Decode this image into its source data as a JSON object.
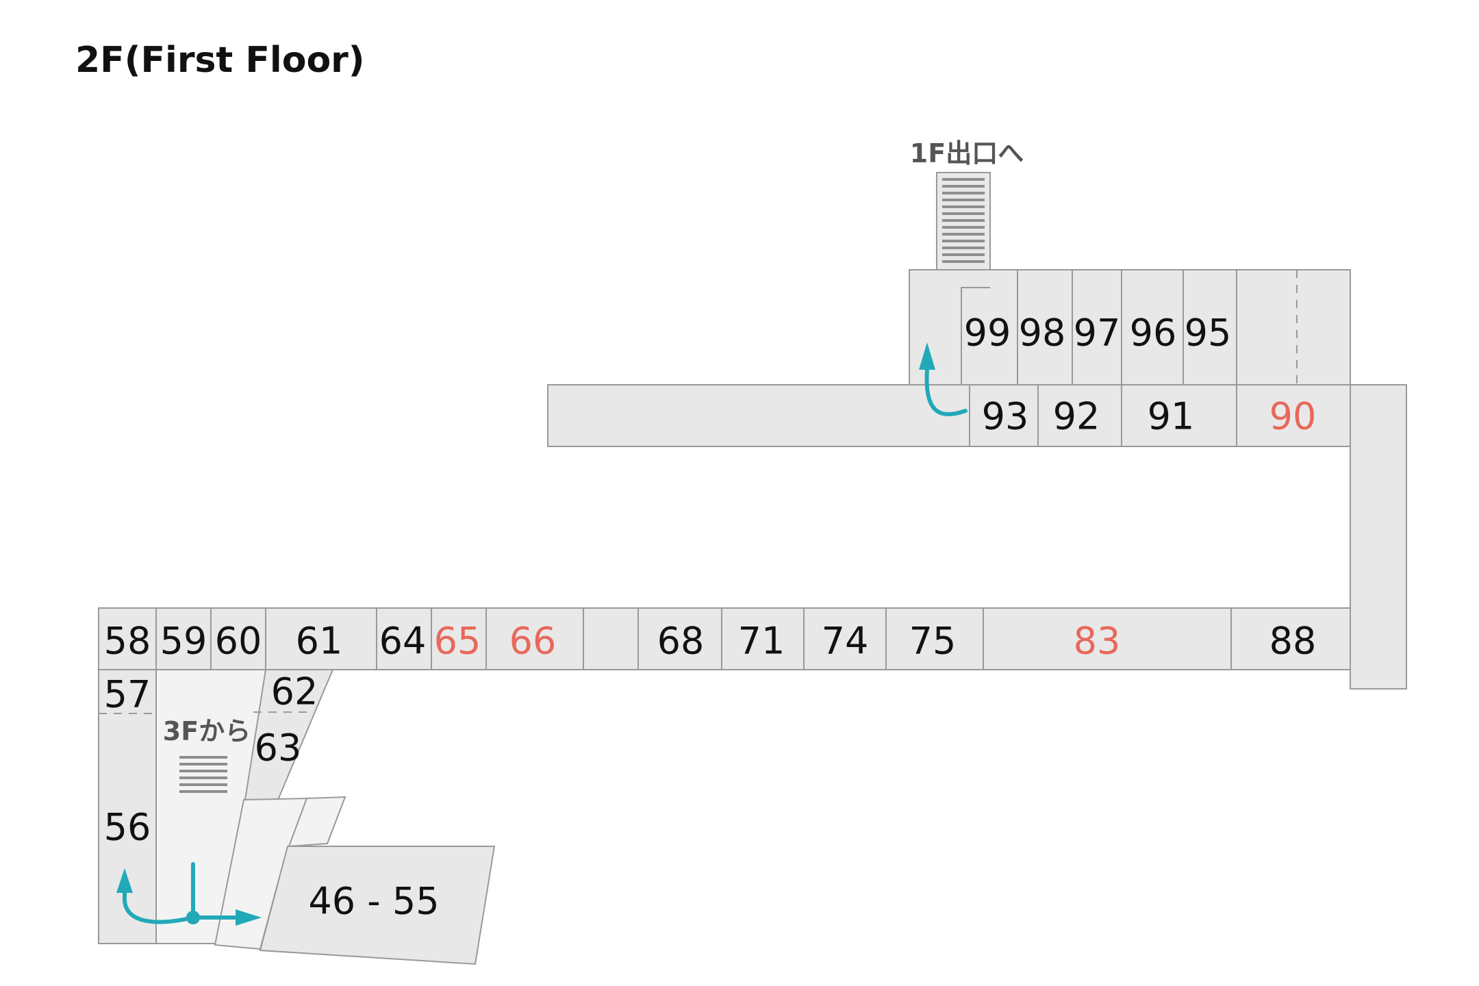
{
  "title": "2F(First Floor)",
  "colors": {
    "default_stall": "#111111",
    "highlight_stall": "#e8685a",
    "route_arrow": "#22a9b8",
    "floor_fill": "#e8e8e8"
  },
  "signs": {
    "exit_1f": "1F出口へ",
    "from_3f": "3Fから"
  },
  "stalls": {
    "s58": {
      "label": "58",
      "highlighted": false
    },
    "s59": {
      "label": "59",
      "highlighted": false
    },
    "s60": {
      "label": "60",
      "highlighted": false
    },
    "s61": {
      "label": "61",
      "highlighted": false
    },
    "s64": {
      "label": "64",
      "highlighted": false
    },
    "s65": {
      "label": "65",
      "highlighted": true
    },
    "s66": {
      "label": "66",
      "highlighted": true
    },
    "s68": {
      "label": "68",
      "highlighted": false
    },
    "s71": {
      "label": "71",
      "highlighted": false
    },
    "s74": {
      "label": "74",
      "highlighted": false
    },
    "s75": {
      "label": "75",
      "highlighted": false
    },
    "s83": {
      "label": "83",
      "highlighted": true
    },
    "s88": {
      "label": "88",
      "highlighted": false
    },
    "s57": {
      "label": "57",
      "highlighted": false
    },
    "s62": {
      "label": "62",
      "highlighted": false
    },
    "s63": {
      "label": "63",
      "highlighted": false
    },
    "s56": {
      "label": "56",
      "highlighted": false
    },
    "s46_55": {
      "label": "46 - 55",
      "highlighted": false
    },
    "s93": {
      "label": "93",
      "highlighted": false
    },
    "s92": {
      "label": "92",
      "highlighted": false
    },
    "s91": {
      "label": "91",
      "highlighted": false
    },
    "s90": {
      "label": "90",
      "highlighted": true
    },
    "s99": {
      "label": "99",
      "highlighted": false
    },
    "s98": {
      "label": "98",
      "highlighted": false
    },
    "s97": {
      "label": "97",
      "highlighted": false
    },
    "s96": {
      "label": "96",
      "highlighted": false
    },
    "s95": {
      "label": "95",
      "highlighted": false
    }
  }
}
